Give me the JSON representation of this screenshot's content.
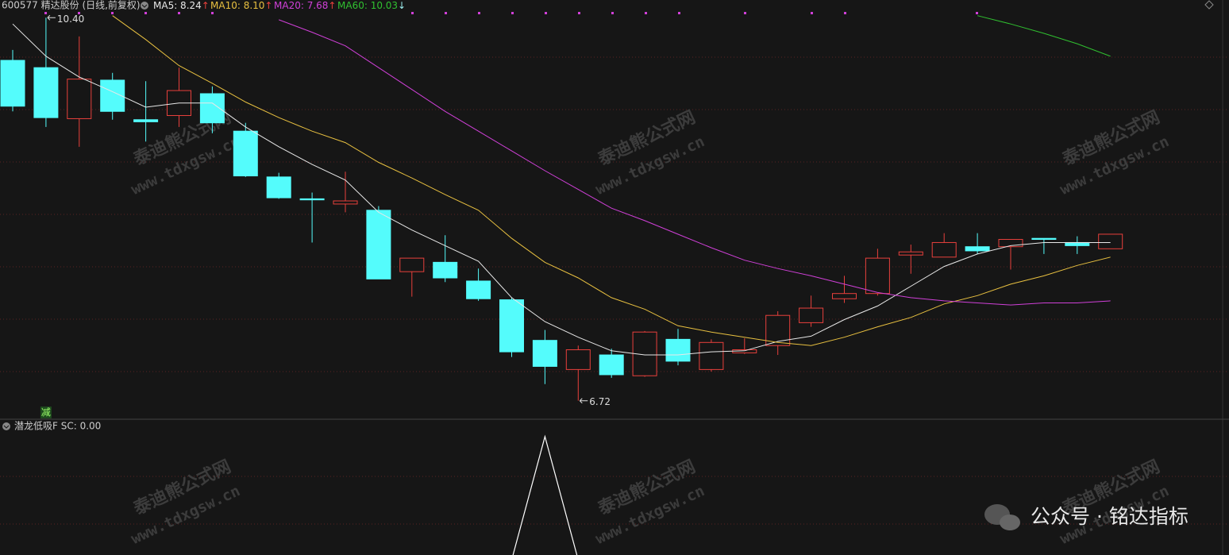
{
  "chart_data": {
    "type": "candlestick",
    "title": "600577 精达股份 (日线,前复权)",
    "categories": [
      null,
      null,
      null,
      null,
      null,
      null,
      null,
      null,
      null,
      null,
      null,
      null,
      null,
      null,
      null,
      null,
      null,
      null,
      null,
      null,
      null,
      null,
      null,
      null,
      null,
      null,
      null,
      null,
      null,
      null,
      null,
      null,
      null,
      null
    ],
    "open": [
      9.99,
      9.92,
      9.43,
      9.8,
      9.42,
      9.46,
      9.67,
      9.31,
      8.87,
      8.66,
      8.61,
      8.55,
      7.96,
      8.05,
      7.87,
      7.69,
      7.3,
      7.02,
      7.16,
      6.96,
      7.31,
      7.02,
      7.18,
      7.25,
      7.47,
      7.7,
      7.75,
      8.12,
      8.1,
      8.2,
      8.2,
      8.28,
      8.24,
      8.18
    ],
    "high": [
      10.09,
      10.4,
      10.22,
      9.87,
      9.79,
      9.92,
      9.74,
      9.39,
      8.91,
      8.72,
      8.92,
      8.59,
      8.09,
      8.31,
      7.99,
      7.71,
      7.4,
      7.25,
      7.22,
      7.39,
      7.41,
      7.31,
      7.32,
      7.58,
      7.73,
      7.92,
      8.18,
      8.22,
      8.33,
      8.33,
      8.27,
      8.28,
      8.3,
      8.32
    ],
    "low": [
      9.5,
      9.35,
      9.16,
      9.42,
      9.21,
      9.35,
      9.29,
      8.87,
      8.66,
      8.24,
      8.53,
      7.89,
      7.72,
      7.86,
      7.68,
      7.14,
      6.88,
      6.72,
      6.94,
      6.95,
      7.06,
      7.0,
      7.17,
      7.16,
      7.43,
      7.66,
      7.73,
      7.94,
      8.1,
      8.13,
      7.98,
      8.13,
      8.13,
      8.18
    ],
    "close": [
      9.55,
      9.44,
      9.81,
      9.5,
      9.4,
      9.7,
      9.39,
      8.88,
      8.67,
      8.65,
      8.64,
      7.89,
      8.09,
      7.9,
      7.7,
      7.19,
      7.05,
      7.21,
      6.97,
      7.38,
      7.1,
      7.28,
      7.21,
      7.54,
      7.61,
      7.75,
      8.09,
      8.15,
      8.24,
      8.16,
      8.27,
      8.27,
      8.21,
      8.32
    ],
    "up_color": "#e8403c",
    "down_color": "#54fcfc",
    "ylim": [
      6.55,
      10.57
    ],
    "ma": [
      {
        "label": "MA5: 8.24",
        "arrow": "↑",
        "arrow_color": "#e8403c",
        "color": "#e8e8e8",
        "values": [
          10.34,
          10.03,
          9.83,
          9.69,
          9.54,
          9.58,
          9.58,
          9.35,
          9.16,
          8.99,
          8.84,
          8.53,
          8.36,
          8.21,
          8.06,
          7.71,
          7.48,
          7.33,
          7.2,
          7.16,
          7.16,
          7.19,
          7.2,
          7.29,
          7.34,
          7.5,
          7.63,
          7.82,
          8.01,
          8.13,
          8.21,
          8.24,
          8.24,
          8.24
        ]
      },
      {
        "label": "MA10: 8.10",
        "arrow": "↑",
        "arrow_color": "#e8403c",
        "color": "#e8c040",
        "values": [
          null,
          null,
          null,
          10.42,
          10.19,
          9.94,
          9.77,
          9.59,
          9.44,
          9.31,
          9.2,
          9.01,
          8.86,
          8.7,
          8.55,
          8.28,
          8.05,
          7.9,
          7.71,
          7.6,
          7.44,
          7.38,
          7.33,
          7.28,
          7.25,
          7.33,
          7.43,
          7.52,
          7.65,
          7.73,
          7.84,
          7.92,
          8.02,
          8.1
        ]
      },
      {
        "label": "MA20: 7.68",
        "arrow": "↑",
        "arrow_color": "#e8403c",
        "color": "#d040d8",
        "values": [
          null,
          null,
          null,
          null,
          null,
          null,
          null,
          null,
          10.38,
          10.26,
          10.13,
          9.92,
          9.71,
          9.5,
          9.31,
          9.12,
          8.93,
          8.75,
          8.57,
          8.45,
          8.32,
          8.19,
          8.07,
          7.99,
          7.92,
          7.84,
          7.76,
          7.71,
          7.68,
          7.66,
          7.64,
          7.66,
          7.66,
          7.68
        ]
      },
      {
        "label": "MA60: 10.03",
        "arrow": "↓",
        "arrow_color": "#9ef0f0",
        "color": "#30c030",
        "values": [
          null,
          null,
          null,
          null,
          null,
          null,
          null,
          null,
          null,
          null,
          null,
          null,
          null,
          null,
          null,
          null,
          null,
          null,
          null,
          null,
          null,
          null,
          null,
          null,
          null,
          null,
          null,
          null,
          null,
          10.42,
          10.34,
          10.25,
          10.15,
          10.03
        ]
      }
    ],
    "annotations": [
      {
        "label": "10.40",
        "value": 10.4,
        "index": 1
      },
      {
        "label": "6.72",
        "value": 6.72,
        "index": 17
      }
    ],
    "signal": {
      "label": "减",
      "index": 1
    },
    "indicator": {
      "title": "潜龙低吸F SC: 0.00",
      "color": "#ffffff",
      "ylim": [
        0.04,
        1.14
      ],
      "values": [
        0,
        0,
        0,
        0,
        0,
        0,
        0,
        0,
        0,
        0,
        0,
        0,
        0,
        0,
        0,
        0,
        1,
        0,
        0,
        0,
        0,
        0,
        0,
        0,
        0,
        0,
        0,
        0,
        0,
        0,
        0,
        0,
        0,
        0
      ]
    },
    "watermarks": [
      "泰迪熊公式网",
      "www.tdxgsw.cn"
    ],
    "brand": "公众号 · 铭达指标"
  }
}
